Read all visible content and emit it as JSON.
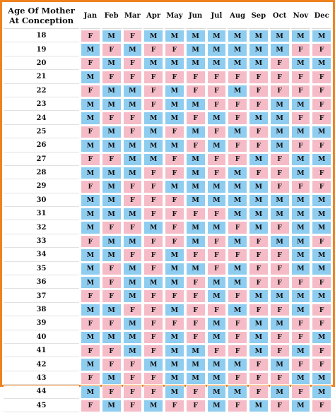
{
  "header": {
    "age_label": "Age Of Mother At Conception",
    "months": [
      "Jan",
      "Feb",
      "Mar",
      "Apr",
      "May",
      "Jun",
      "Jul",
      "Aug",
      "Sep",
      "Oct",
      "Nov",
      "Dec"
    ]
  },
  "colors": {
    "M": "#8ecdf0",
    "F": "#f5bcc8",
    "border": "#f0821e"
  },
  "rows": [
    {
      "age": "18",
      "cells": [
        "F",
        "M",
        "F",
        "M",
        "M",
        "M",
        "M",
        "M",
        "M",
        "M",
        "M",
        "M"
      ]
    },
    {
      "age": "19",
      "cells": [
        "M",
        "F",
        "M",
        "F",
        "F",
        "M",
        "M",
        "M",
        "M",
        "M",
        "F",
        "F"
      ]
    },
    {
      "age": "20",
      "cells": [
        "F",
        "M",
        "F",
        "M",
        "M",
        "M",
        "M",
        "M",
        "M",
        "F",
        "M",
        "M"
      ]
    },
    {
      "age": "21",
      "cells": [
        "M",
        "F",
        "F",
        "F",
        "F",
        "F",
        "F",
        "F",
        "F",
        "F",
        "F",
        "F"
      ]
    },
    {
      "age": "22",
      "cells": [
        "F",
        "M",
        "M",
        "F",
        "M",
        "F",
        "F",
        "M",
        "F",
        "F",
        "F",
        "F"
      ]
    },
    {
      "age": "23",
      "cells": [
        "M",
        "M",
        "M",
        "F",
        "M",
        "M",
        "F",
        "F",
        "F",
        "M",
        "M",
        "F"
      ]
    },
    {
      "age": "24",
      "cells": [
        "M",
        "F",
        "F",
        "M",
        "M",
        "F",
        "M",
        "F",
        "M",
        "M",
        "F",
        "F"
      ]
    },
    {
      "age": "25",
      "cells": [
        "F",
        "M",
        "F",
        "M",
        "F",
        "M",
        "F",
        "M",
        "F",
        "M",
        "M",
        "M"
      ]
    },
    {
      "age": "26",
      "cells": [
        "M",
        "M",
        "M",
        "M",
        "M",
        "F",
        "M",
        "F",
        "F",
        "M",
        "F",
        "F"
      ]
    },
    {
      "age": "27",
      "cells": [
        "F",
        "F",
        "M",
        "M",
        "F",
        "M",
        "F",
        "F",
        "M",
        "F",
        "M",
        "M"
      ]
    },
    {
      "age": "28",
      "cells": [
        "M",
        "M",
        "M",
        "F",
        "F",
        "M",
        "F",
        "M",
        "F",
        "F",
        "M",
        "F"
      ]
    },
    {
      "age": "29",
      "cells": [
        "F",
        "M",
        "F",
        "F",
        "M",
        "M",
        "M",
        "M",
        "M",
        "F",
        "F",
        "F"
      ]
    },
    {
      "age": "30",
      "cells": [
        "M",
        "M",
        "F",
        "F",
        "F",
        "M",
        "M",
        "M",
        "M",
        "M",
        "M",
        "M"
      ]
    },
    {
      "age": "31",
      "cells": [
        "M",
        "M",
        "M",
        "F",
        "F",
        "F",
        "F",
        "M",
        "M",
        "M",
        "M",
        "M"
      ]
    },
    {
      "age": "32",
      "cells": [
        "M",
        "F",
        "F",
        "M",
        "F",
        "M",
        "M",
        "F",
        "M",
        "F",
        "M",
        "M"
      ]
    },
    {
      "age": "33",
      "cells": [
        "F",
        "M",
        "M",
        "F",
        "F",
        "M",
        "F",
        "M",
        "F",
        "M",
        "M",
        "F"
      ]
    },
    {
      "age": "34",
      "cells": [
        "M",
        "M",
        "F",
        "F",
        "M",
        "F",
        "F",
        "F",
        "F",
        "F",
        "M",
        "M"
      ]
    },
    {
      "age": "35",
      "cells": [
        "M",
        "F",
        "M",
        "F",
        "M",
        "M",
        "F",
        "M",
        "F",
        "F",
        "M",
        "M"
      ]
    },
    {
      "age": "36",
      "cells": [
        "M",
        "F",
        "M",
        "M",
        "M",
        "F",
        "M",
        "M",
        "F",
        "F",
        "F",
        "F"
      ]
    },
    {
      "age": "37",
      "cells": [
        "F",
        "F",
        "M",
        "F",
        "F",
        "F",
        "M",
        "F",
        "M",
        "M",
        "M",
        "M"
      ]
    },
    {
      "age": "38",
      "cells": [
        "M",
        "M",
        "F",
        "F",
        "M",
        "F",
        "F",
        "M",
        "F",
        "F",
        "M",
        "F"
      ]
    },
    {
      "age": "39",
      "cells": [
        "F",
        "F",
        "M",
        "F",
        "F",
        "F",
        "M",
        "F",
        "M",
        "M",
        "F",
        "F"
      ]
    },
    {
      "age": "40",
      "cells": [
        "M",
        "M",
        "M",
        "F",
        "M",
        "F",
        "M",
        "F",
        "M",
        "F",
        "F",
        "M"
      ]
    },
    {
      "age": "41",
      "cells": [
        "F",
        "F",
        "M",
        "F",
        "M",
        "M",
        "F",
        "F",
        "M",
        "F",
        "M",
        "F"
      ]
    },
    {
      "age": "42",
      "cells": [
        "M",
        "F",
        "F",
        "M",
        "M",
        "M",
        "M",
        "M",
        "F",
        "M",
        "F",
        "F"
      ]
    },
    {
      "age": "43",
      "cells": [
        "F",
        "M",
        "F",
        "F",
        "M",
        "M",
        "M",
        "F",
        "F",
        "F",
        "M",
        "M"
      ]
    },
    {
      "age": "44",
      "cells": [
        "M",
        "F",
        "F",
        "F",
        "M",
        "F",
        "M",
        "M",
        "F",
        "M",
        "F",
        "M"
      ]
    },
    {
      "age": "45",
      "cells": [
        "F",
        "M",
        "F",
        "M",
        "F",
        "F",
        "M",
        "F",
        "M",
        "F",
        "M",
        "F"
      ]
    }
  ]
}
